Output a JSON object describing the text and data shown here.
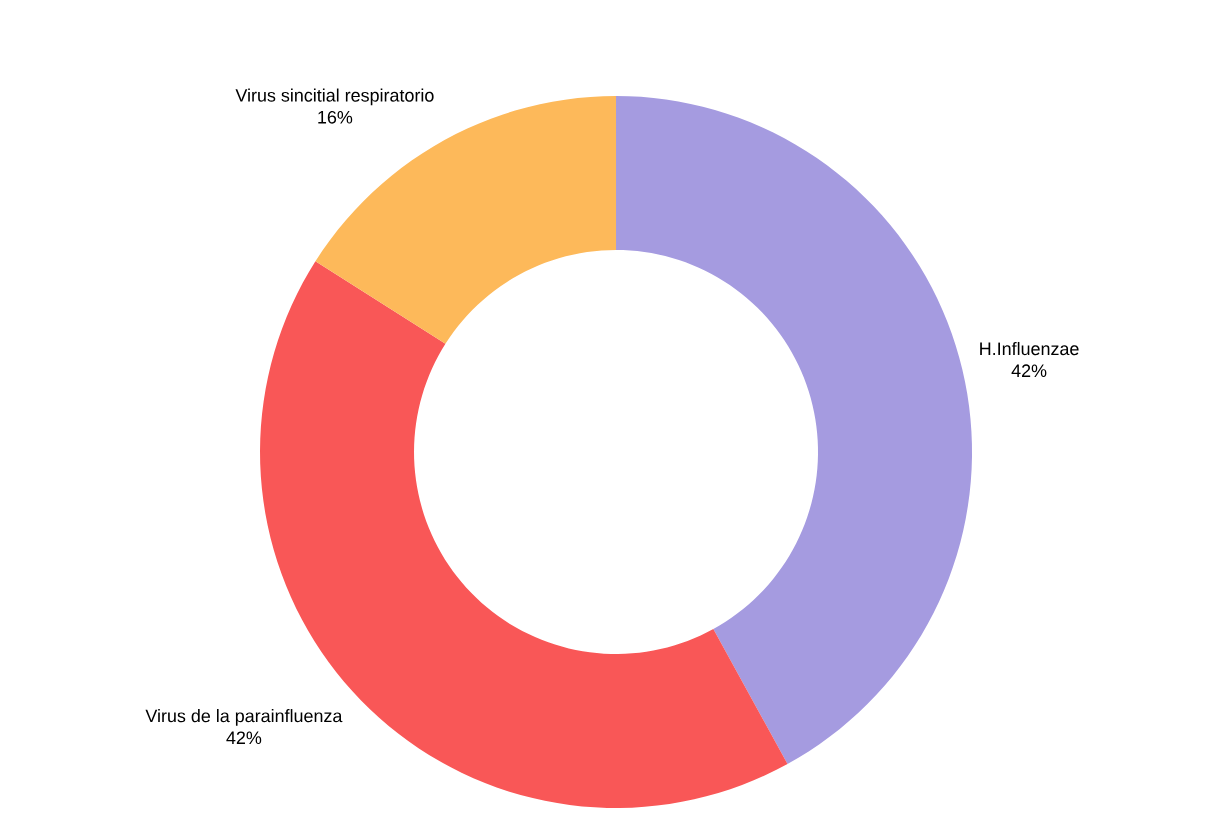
{
  "chart_data": {
    "type": "donut",
    "categories": [
      "H.Influenzae",
      "Virus de la parainfluenza",
      "Virus sincitial respiratorio"
    ],
    "values": [
      42,
      42,
      16
    ],
    "value_labels": [
      "42%",
      "42%",
      "16%"
    ],
    "colors": [
      "#a59be0",
      "#f95757",
      "#fdb95a"
    ]
  }
}
